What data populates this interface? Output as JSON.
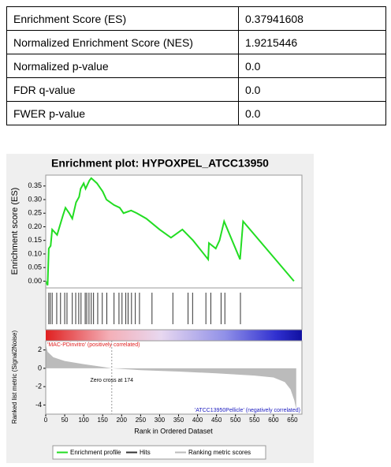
{
  "table": {
    "rows": [
      [
        "Enrichment Score (ES)",
        "0.37941608"
      ],
      [
        "Normalized Enrichment Score (NES)",
        "1.9215446"
      ],
      [
        "Normalized p-value",
        "0.0"
      ],
      [
        "FDR q-value",
        "0.0"
      ],
      [
        "FWER p-value",
        "0.0"
      ]
    ]
  },
  "chart_data": {
    "type": "gsea",
    "title": "Enrichment plot: HYPOXPEL_ATCC13950",
    "xlabel": "Rank in Ordered Dataset",
    "xlim": [
      0,
      675
    ],
    "xticks": [
      0,
      50,
      100,
      150,
      200,
      250,
      300,
      350,
      400,
      450,
      500,
      550,
      600,
      650
    ],
    "es": {
      "name": "Enrichment profile",
      "ylabel": "Enrichment score (ES)",
      "color": "#22dd22",
      "ylim": [
        -0.025,
        0.39
      ],
      "yticks": [
        {
          "value": 0,
          "label": "0.00"
        },
        {
          "value": 0.05,
          "label": "0.05"
        },
        {
          "value": 0.1,
          "label": "0.10"
        },
        {
          "value": 0.15,
          "label": "0.15"
        },
        {
          "value": 0.2,
          "label": "0.20"
        },
        {
          "value": 0.25,
          "label": "0.25"
        },
        {
          "value": 0.3,
          "label": "0.30"
        },
        {
          "value": 0.35,
          "label": "0.35"
        }
      ],
      "x": [
        0,
        5,
        8,
        13,
        17,
        30,
        45,
        52,
        62,
        70,
        75,
        80,
        88,
        92,
        100,
        105,
        115,
        120,
        135,
        150,
        160,
        180,
        195,
        205,
        225,
        240,
        265,
        300,
        330,
        360,
        388,
        428,
        430,
        448,
        458,
        470,
        512,
        520,
        654
      ],
      "values": [
        0,
        -0.015,
        0.12,
        0.13,
        0.19,
        0.17,
        0.24,
        0.27,
        0.25,
        0.23,
        0.26,
        0.29,
        0.31,
        0.34,
        0.36,
        0.34,
        0.37,
        0.379,
        0.36,
        0.33,
        0.3,
        0.28,
        0.27,
        0.25,
        0.26,
        0.25,
        0.23,
        0.19,
        0.16,
        0.19,
        0.15,
        0.08,
        0.14,
        0.12,
        0.15,
        0.22,
        0.08,
        0.22,
        0
      ]
    },
    "hits": {
      "name": "Hits",
      "color": "#333333",
      "x": [
        8,
        12,
        17,
        29,
        39,
        50,
        56,
        70,
        79,
        87,
        93,
        104,
        108,
        114,
        120,
        126,
        137,
        149,
        161,
        180,
        193,
        201,
        211,
        217,
        226,
        236,
        247,
        280,
        335,
        375,
        387,
        422,
        435,
        462,
        472,
        513
      ]
    },
    "metric": {
      "name": "Ranking metric scores",
      "ylabel": "Ranked list metric (Signal2Noise)",
      "color": "#bbbbbb",
      "ylim": [
        -5,
        3
      ],
      "yticks": [
        -4,
        -2,
        0,
        2
      ],
      "x": [
        0,
        5,
        20,
        50,
        100,
        150,
        174,
        250,
        350,
        450,
        550,
        600,
        630,
        645,
        655,
        660
      ],
      "values": [
        2.6,
        1.8,
        1.2,
        0.8,
        0.45,
        0.15,
        0,
        -0.2,
        -0.35,
        -0.55,
        -0.8,
        -1.0,
        -1.5,
        -2.3,
        -3.5,
        -4.5
      ]
    },
    "zero_cross": 174,
    "zero_cross_label": "Zero cross at 174",
    "pos_label": "'MAC-PDinvitro' (positively correlated)",
    "neg_label": "'ATCC13950Pellicle' (negatively correlated)"
  }
}
